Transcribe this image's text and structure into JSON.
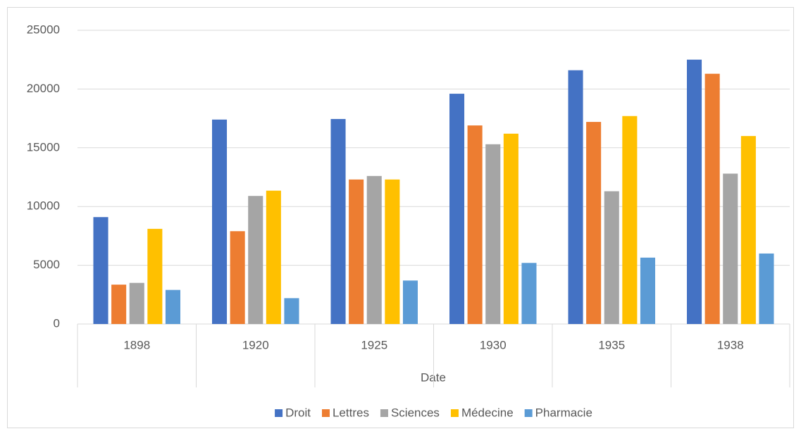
{
  "chart_data": {
    "type": "bar",
    "categories": [
      "1898",
      "1920",
      "1925",
      "1930",
      "1935",
      "1938"
    ],
    "x_label": "Date",
    "series": [
      {
        "name": "Droit",
        "color": "#4472c4",
        "values": [
          9100,
          17400,
          17450,
          19600,
          21600,
          22500
        ]
      },
      {
        "name": "Lettres",
        "color": "#ed7d31",
        "values": [
          3350,
          7900,
          12300,
          16900,
          17200,
          21300
        ]
      },
      {
        "name": "Sciences",
        "color": "#a5a5a5",
        "values": [
          3500,
          10900,
          12600,
          15300,
          11300,
          12800
        ]
      },
      {
        "name": "Médecine",
        "color": "#ffc000",
        "values": [
          8100,
          11350,
          12300,
          16200,
          17700,
          16000
        ]
      },
      {
        "name": "Pharmacie",
        "color": "#5b9bd5",
        "values": [
          2900,
          2200,
          3700,
          5200,
          5650,
          6000
        ]
      }
    ],
    "ylim": [
      0,
      25000
    ],
    "yticks": [
      0,
      5000,
      10000,
      15000,
      20000,
      25000
    ],
    "grid": true,
    "legend": "bottom"
  }
}
